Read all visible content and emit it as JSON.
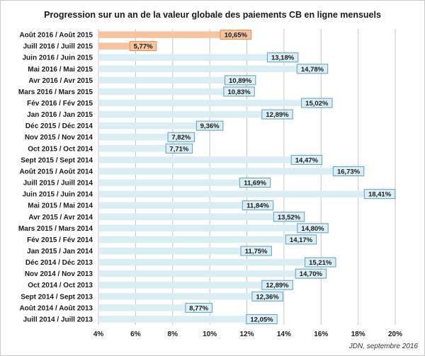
{
  "chart_data": {
    "type": "bar",
    "orientation": "horizontal",
    "title": "Progression sur un an de la valeur globale des paiements CB en ligne mensuels",
    "categories": [
      "Août 2016 / Août 2015",
      "Juill 2016 / Juill 2015",
      "Juin 2016 / Juin 2015",
      "Mai 2016 / Mai 2015",
      "Avr 2016 / Avr 2015",
      "Mars 2016 / Mars 2015",
      "Fév 2016 / Fév 2015",
      "Jan 2016 / Jan 2015",
      "Déc 2015 / Déc 2014",
      "Nov 2015 / Nov 2014",
      "Oct 2015 / Oct 2014",
      "Sept 2015 / Sept 2014",
      "Août 2015 / Août 2014",
      "Juill 2015 / Juill 2014",
      "Juin 2015 / Juin 2014",
      "Mai 2015 / Mai 2014",
      "Avr 2015 / Avr 2014",
      "Mars 2015 / Mars 2014",
      "Fév 2015 / Fév 2014",
      "Jan 2015 / Jan 2014",
      "Déc 2014 / Déc 2013",
      "Nov 2014 / Nov 2013",
      "Oct 2014 / Oct 2013",
      "Sept 2014 / Sept 2013",
      "Août 2014 / Août 2013",
      "Juill 2014 / Juill 2013"
    ],
    "values": [
      10.65,
      5.77,
      13.18,
      14.78,
      10.89,
      10.83,
      15.02,
      12.89,
      9.36,
      7.82,
      7.71,
      14.47,
      16.73,
      11.69,
      18.41,
      11.84,
      13.52,
      14.8,
      14.17,
      11.75,
      15.21,
      14.7,
      12.89,
      12.36,
      8.77,
      12.05
    ],
    "data_labels": [
      "10,65%",
      "5,77%",
      "13,18%",
      "14,78%",
      "10,89%",
      "10,83%",
      "15,02%",
      "12,89%",
      "9,36%",
      "7,82%",
      "7,71%",
      "14,47%",
      "16,73%",
      "11,69%",
      "18,41%",
      "11,84%",
      "13,52%",
      "14,80%",
      "14,17%",
      "11,75%",
      "15,21%",
      "14,70%",
      "12,89%",
      "12,36%",
      "8,77%",
      "12,05%"
    ],
    "highlighted": [
      0,
      1
    ],
    "xlim": [
      4,
      20
    ],
    "xticks": [
      4,
      6,
      8,
      10,
      12,
      14,
      16,
      18,
      20
    ],
    "xtick_labels": [
      "4%",
      "6%",
      "8%",
      "10%",
      "12%",
      "14%",
      "16%",
      "18%",
      "20%"
    ],
    "xlabel": "",
    "ylabel": "",
    "grid": "vertical",
    "legend": "none",
    "colors": {
      "highlight_bar": "#f6c4a0",
      "highlight_label_bg": "#f6c4a0",
      "highlight_label_border": "#e0914f",
      "bar": "#dbeef4",
      "label_bg": "#dbeef4",
      "label_border": "#5aa3c0",
      "grid": "#c6c6c6"
    }
  },
  "source": "JDN, septembre 2016"
}
